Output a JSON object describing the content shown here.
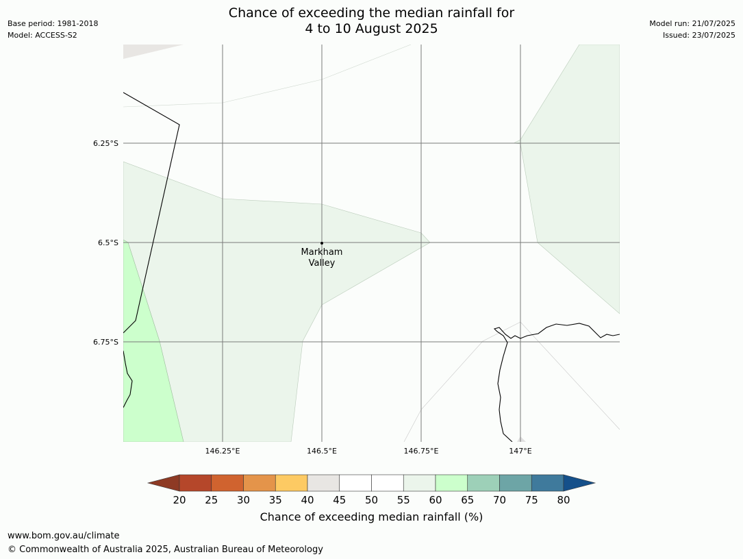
{
  "header": {
    "base_period": "Base period: 1981-2018",
    "model": "Model: ACCESS-S2",
    "title_line1": "Chance of exceeding the median rainfall for",
    "title_line2": "4 to 10 August 2025",
    "model_run": "Model run: 21/07/2025",
    "issued": "Issued: 23/07/2025"
  },
  "map": {
    "lon_ticks": [
      "146.25°E",
      "146.5°E",
      "146.75°E",
      "147°E"
    ],
    "lat_ticks": [
      "6.25°S",
      "6.5°S",
      "6.75°S"
    ],
    "place": {
      "name_line1": "Markham",
      "name_line2": "Valley"
    },
    "colors": {
      "grid": "#7a7a7a",
      "coast": "#000000",
      "band_55_60": "#ebf5eb",
      "band_60_65": "#ccffcc",
      "band_40_45": "#e8e6e3"
    }
  },
  "colorbar": {
    "title": "Chance of exceeding median rainfall (%)",
    "ticks": [
      "20",
      "25",
      "30",
      "35",
      "40",
      "45",
      "50",
      "55",
      "60",
      "65",
      "70",
      "75",
      "80"
    ],
    "under_color": "#8e3a24",
    "over_color": "#15508a",
    "colors": [
      "#b5472a",
      "#d0632f",
      "#e4944a",
      "#fdca63",
      "#e8e6e3",
      "#ffffff",
      "#ffffff",
      "#ebf5eb",
      "#ccffcc",
      "#9dd0b8",
      "#6da5a6",
      "#3f7a9c"
    ]
  },
  "footer": {
    "url": "www.bom.gov.au/climate",
    "copyright": "© Commonwealth of Australia 2025, Australian Bureau of Meteorology"
  }
}
